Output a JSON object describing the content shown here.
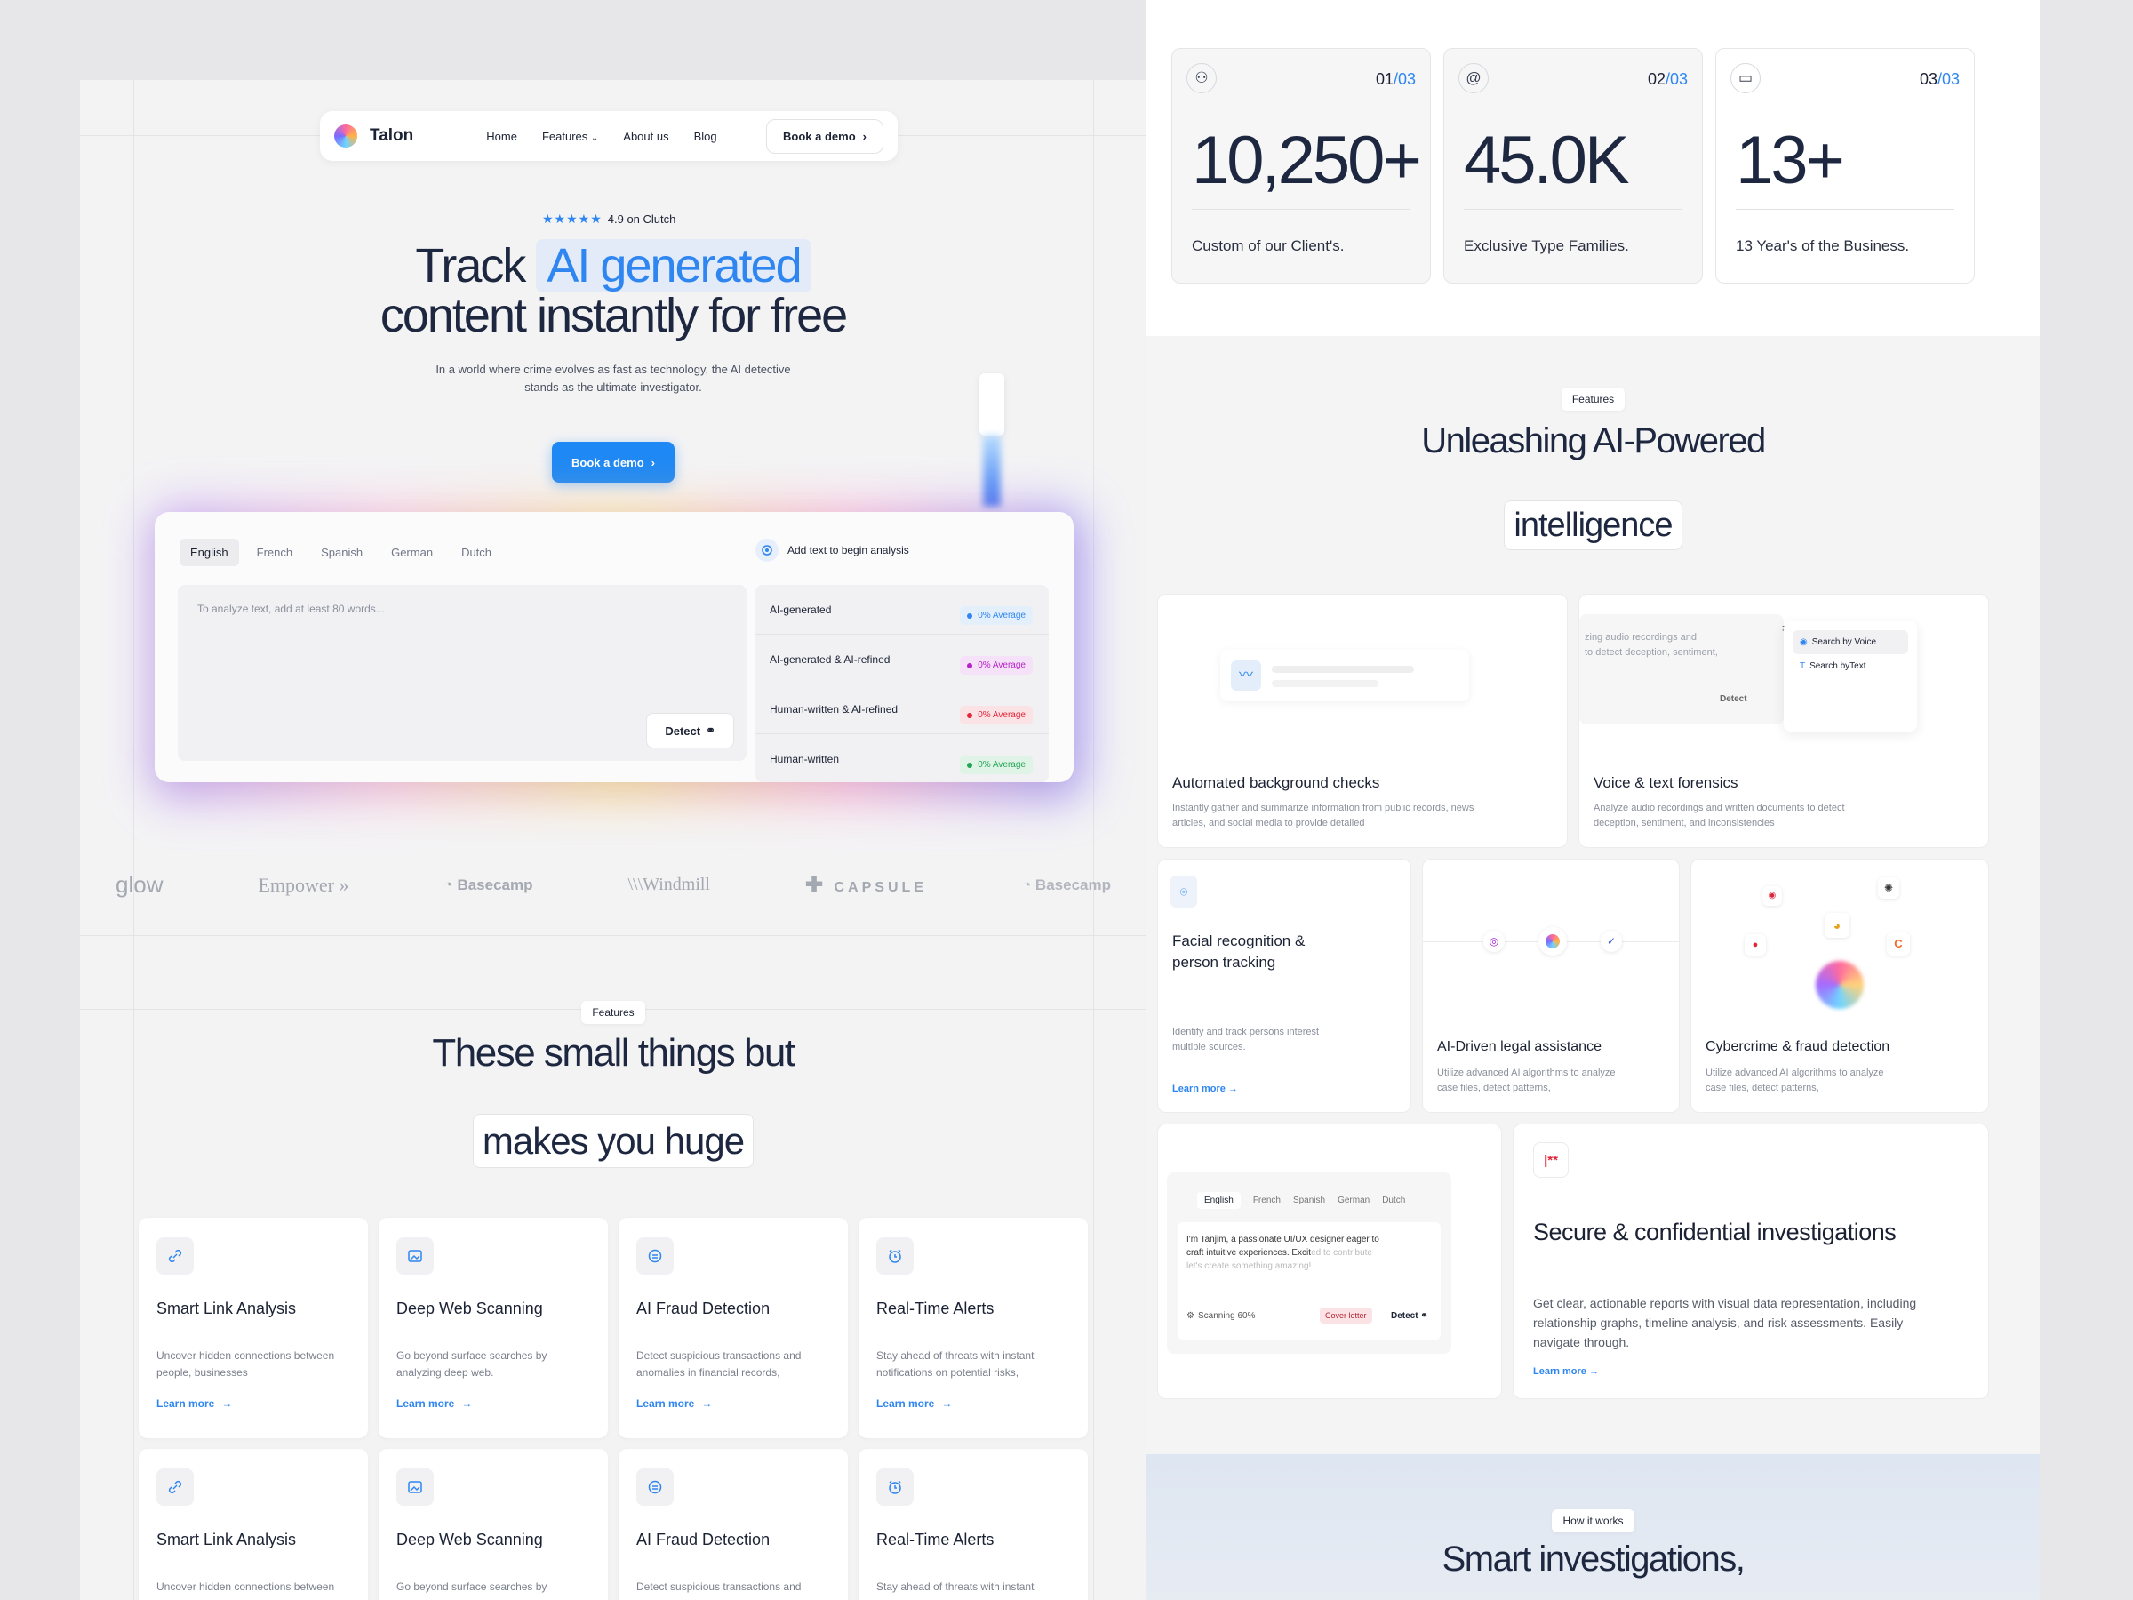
{
  "left": {
    "nav": {
      "brand": "Talon",
      "links": [
        "Home",
        "Features",
        "About us",
        "Blog"
      ],
      "cta": "Book a demo"
    },
    "rating": {
      "stars": "★★★★★",
      "text": "4.9 on Clutch"
    },
    "hero": {
      "line1_prefix": "Track",
      "highlight": "AI generated",
      "line2": "content instantly for free",
      "sub": "In a world where crime evolves as fast as technology, the AI detective stands as the ultimate investigator.",
      "cta": "Book a demo"
    },
    "analyzer": {
      "langs": [
        "English",
        "French",
        "Spanish",
        "German",
        "Dutch"
      ],
      "placeholder": "To analyze text, add at least 80 words...",
      "detect": "Detect",
      "add_text": "Add text to  begin analysis",
      "results": [
        {
          "label": "AI-generated",
          "value": "0% Average",
          "color": "#2f86f0",
          "bg": "#e4effc"
        },
        {
          "label": "AI-generated & AI-refined",
          "value": "0% Average",
          "color": "#b623c9",
          "bg": "#f6e2f8"
        },
        {
          "label": "Human-written & AI-refined",
          "value": "0% Average",
          "color": "#e0263a",
          "bg": "#fbe3e5"
        },
        {
          "label": "Human-written",
          "value": "0% Average",
          "color": "#22a653",
          "bg": "#dff3e6"
        }
      ]
    },
    "logos": [
      "glow",
      "Empower",
      "Basecamp",
      "Windmill",
      "CAPSULE",
      "Basecamp"
    ],
    "features": {
      "tag": "Features",
      "title1": "These small things but",
      "title2": "makes you huge"
    },
    "cards": [
      {
        "title": "Smart Link Analysis",
        "desc": "Uncover hidden connections between people, businesses",
        "link": "Learn more",
        "icon": "link-icon"
      },
      {
        "title": "Deep Web Scanning",
        "desc": "Go beyond surface searches by analyzing deep web.",
        "link": "Learn more",
        "icon": "image-icon"
      },
      {
        "title": "AI Fraud Detection",
        "desc": "Detect suspicious transactions and anomalies in financial records,",
        "link": "Learn more",
        "icon": "brain-icon"
      },
      {
        "title": "Real-Time Alerts",
        "desc": "Stay ahead of threats with instant notifications on potential risks,",
        "link": "Learn more",
        "icon": "alarm-icon"
      }
    ],
    "cards2": [
      {
        "title": "Smart Link Analysis",
        "desc": "Uncover hidden connections between"
      },
      {
        "title": "Deep Web Scanning",
        "desc": "Go beyond surface searches by"
      },
      {
        "title": "AI Fraud Detection",
        "desc": "Detect suspicious transactions and"
      },
      {
        "title": "Real-Time Alerts",
        "desc": "Stay ahead of threats with instant"
      }
    ]
  },
  "right": {
    "stats": [
      {
        "num": "01",
        "total": "/03",
        "big": "10,250+",
        "desc": "Custom of our Client's.",
        "icon": "users-icon"
      },
      {
        "num": "02",
        "total": "/03",
        "big": "45.0K",
        "desc": "Exclusive Type Families.",
        "icon": "at-icon"
      },
      {
        "num": "03",
        "total": "/03",
        "big": "13+",
        "desc": "13 Year's of the Business.",
        "icon": "window-icon"
      }
    ],
    "features": {
      "tag": "Features",
      "title1": "Unleashing AI-Powered",
      "title2": "intelligence"
    },
    "auto": {
      "title": "Automated background checks",
      "desc": "Instantly gather and summarize information from public records, news articles, and social media to provide detailed"
    },
    "voice": {
      "title": "Voice & text forensics",
      "desc": "Analyze audio recordings and written documents to detect deception, sentiment, and inconsistencies",
      "snippet": "zing audio recordings and\n to detect deception, sentiment,",
      "by_voice": "Search by Voice",
      "by_text": "Search byText",
      "detect": "Detect"
    },
    "facial": {
      "title": "Facial recognition &\nperson tracking",
      "desc": "Identify and track persons interest\nmultiple sources.",
      "link": "Learn more"
    },
    "legal": {
      "title": "AI-Driven legal assistance",
      "desc": "Utilize advanced AI algorithms to analyze case files, detect patterns,"
    },
    "cyber": {
      "title": "Cybercrime & fraud detection",
      "desc": "Utilize advanced AI algorithms to analyze case files, detect patterns,"
    },
    "mini": {
      "langs": [
        "English",
        "French",
        "Spanish",
        "German",
        "Dutch"
      ],
      "text": "I'm Tanjim, a passionate UI/UX designer eager to craft intuitive experiences. Excit",
      "fade": "ed to contribute let's create something amazing!",
      "scan": "Scanning 60%",
      "tag": "Cover letter",
      "detect": "Detect"
    },
    "secure": {
      "title": "Secure & confidential investigations",
      "desc": "Get clear, actionable reports with visual data representation, including relationship graphs, timeline analysis, and risk assessments. Easily navigate through.",
      "link": "Learn more",
      "badge": "|**"
    },
    "how": {
      "tag": "How it works",
      "title": "Smart investigations,"
    }
  }
}
